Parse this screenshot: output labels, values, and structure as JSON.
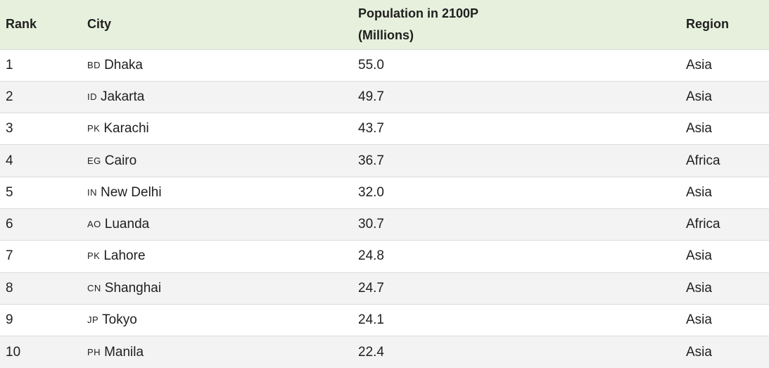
{
  "table": {
    "headers": {
      "rank": "Rank",
      "city": "City",
      "population_line1": "Population in 2100P",
      "population_line2": "(Millions)",
      "region": "Region"
    },
    "rows": [
      {
        "rank": "1",
        "code": "BD",
        "city": "Dhaka",
        "population": "55.0",
        "region": "Asia"
      },
      {
        "rank": "2",
        "code": "ID",
        "city": "Jakarta",
        "population": "49.7",
        "region": "Asia"
      },
      {
        "rank": "3",
        "code": "PK",
        "city": "Karachi",
        "population": "43.7",
        "region": "Asia"
      },
      {
        "rank": "4",
        "code": "EG",
        "city": "Cairo",
        "population": "36.7",
        "region": "Africa"
      },
      {
        "rank": "5",
        "code": "IN",
        "city": "New Delhi",
        "population": "32.0",
        "region": "Asia"
      },
      {
        "rank": "6",
        "code": "AO",
        "city": "Luanda",
        "population": "30.7",
        "region": "Africa"
      },
      {
        "rank": "7",
        "code": "PK",
        "city": "Lahore",
        "population": "24.8",
        "region": "Asia"
      },
      {
        "rank": "8",
        "code": "CN",
        "city": "Shanghai",
        "population": "24.7",
        "region": "Asia"
      },
      {
        "rank": "9",
        "code": "JP",
        "city": "Tokyo",
        "population": "24.1",
        "region": "Asia"
      },
      {
        "rank": "10",
        "code": "PH",
        "city": "Manila",
        "population": "22.4",
        "region": "Asia"
      }
    ]
  },
  "colors": {
    "header_background": "#e7f0dc",
    "stripe_background": "#f3f3f3",
    "row_border": "#dcdcdc"
  }
}
